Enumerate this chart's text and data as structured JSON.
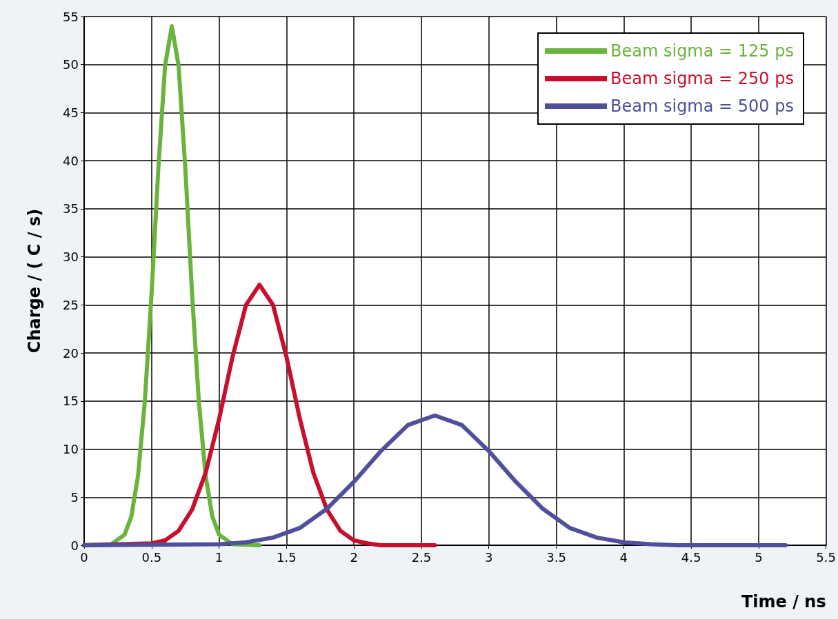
{
  "chart_data": {
    "type": "line",
    "xlabel": "Time / ns",
    "ylabel": "Charge / ( C / s)",
    "xlim": [
      0,
      5.5
    ],
    "xticks": [
      0,
      0.5,
      1,
      1.5,
      2,
      2.5,
      3,
      3.5,
      4,
      4.5,
      5,
      5.5
    ],
    "ylim": [
      0,
      55
    ],
    "yticks": [
      0,
      5,
      10,
      15,
      20,
      25,
      30,
      35,
      40,
      45,
      50,
      55
    ],
    "grid": true,
    "legend": "top right",
    "marker": "none",
    "line_style": "solid",
    "series": [
      {
        "name": "Beam sigma = 125 ps",
        "color": "#6ab43e",
        "x": [
          0,
          0.2,
          0.3,
          0.35,
          0.4,
          0.45,
          0.5,
          0.55,
          0.6,
          0.65,
          0.7,
          0.75,
          0.8,
          0.85,
          0.9,
          0.95,
          1.0,
          1.1,
          1.3
        ],
        "values": [
          0,
          0.1,
          1.1,
          3,
          7.3,
          15,
          26.2,
          39.2,
          49.9,
          54,
          49.9,
          39.2,
          26.2,
          15,
          7.3,
          3,
          1.1,
          0.1,
          0
        ]
      },
      {
        "name": "Beam sigma = 250 ps",
        "color": "#c8102e",
        "x": [
          0,
          0.5,
          0.6,
          0.7,
          0.8,
          0.9,
          1.0,
          1.1,
          1.2,
          1.3,
          1.4,
          1.5,
          1.6,
          1.7,
          1.8,
          1.9,
          2.0,
          2.1,
          2.2,
          2.6
        ],
        "values": [
          0,
          0.2,
          0.5,
          1.5,
          3.7,
          7.5,
          13.1,
          19.6,
          25,
          27.1,
          25,
          19.6,
          13.1,
          7.5,
          3.7,
          1.5,
          0.5,
          0.2,
          0,
          0
        ]
      },
      {
        "name": "Beam sigma = 500 ps",
        "color": "#4f4f9c",
        "x": [
          0,
          1.0,
          1.2,
          1.4,
          1.6,
          1.8,
          2.0,
          2.2,
          2.4,
          2.6,
          2.8,
          3.0,
          3.2,
          3.4,
          3.6,
          3.8,
          4.0,
          4.2,
          4.4,
          5.2
        ],
        "values": [
          0,
          0.1,
          0.3,
          0.8,
          1.8,
          3.8,
          6.6,
          9.8,
          12.5,
          13.5,
          12.5,
          9.8,
          6.6,
          3.8,
          1.8,
          0.8,
          0.3,
          0.1,
          0,
          0
        ]
      }
    ]
  }
}
